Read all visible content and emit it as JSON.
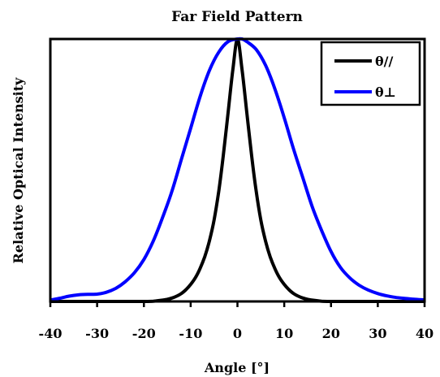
{
  "chart_data": {
    "type": "line",
    "title": "Far Field Pattern",
    "xlabel": "Angle [°]",
    "ylabel": "Relative Optical Intensity",
    "xlim": [
      -40,
      40
    ],
    "ylim": [
      0,
      1
    ],
    "xticks": [
      -40,
      -30,
      -20,
      -10,
      0,
      10,
      20,
      30,
      40
    ],
    "xtick_labels": [
      "-40",
      "-30",
      "-20",
      "-10",
      "0",
      "10",
      "20",
      "30",
      "40"
    ],
    "show_yticks": false,
    "grid": false,
    "legend_position": "top-right",
    "series": [
      {
        "name": "θ//",
        "color": "#000000",
        "x": [
          -40,
          -30,
          -25,
          -20,
          -18,
          -16,
          -15,
          -14,
          -13,
          -12,
          -11,
          -10,
          -9,
          -8,
          -7,
          -6,
          -5,
          -4,
          -3,
          -2,
          -1,
          0,
          1,
          2,
          3,
          4,
          5,
          6,
          7,
          8,
          9,
          10,
          11,
          12,
          13,
          14,
          15,
          16,
          18,
          20,
          25,
          30,
          40
        ],
        "y": [
          0,
          0,
          0,
          0,
          0.001,
          0.005,
          0.008,
          0.013,
          0.02,
          0.03,
          0.045,
          0.065,
          0.09,
          0.125,
          0.17,
          0.23,
          0.31,
          0.42,
          0.56,
          0.72,
          0.88,
          1.0,
          0.88,
          0.72,
          0.56,
          0.42,
          0.31,
          0.23,
          0.17,
          0.125,
          0.09,
          0.065,
          0.045,
          0.03,
          0.02,
          0.013,
          0.008,
          0.005,
          0.001,
          0,
          0,
          0,
          0
        ]
      },
      {
        "name": "θ⊥",
        "color": "#0000ff",
        "x": [
          -40,
          -38,
          -36,
          -34,
          -32,
          -30,
          -28,
          -26,
          -24,
          -22,
          -20,
          -18,
          -16,
          -14,
          -12,
          -10,
          -8,
          -6,
          -4,
          -2,
          0,
          1,
          2,
          4,
          6,
          8,
          10,
          12,
          14,
          16,
          18,
          20,
          22,
          24,
          26,
          28,
          30,
          32,
          34,
          36,
          38,
          40
        ],
        "y": [
          0.005,
          0.012,
          0.02,
          0.025,
          0.027,
          0.028,
          0.035,
          0.05,
          0.075,
          0.11,
          0.16,
          0.23,
          0.32,
          0.42,
          0.54,
          0.66,
          0.78,
          0.88,
          0.95,
          0.99,
          1.0,
          1.0,
          0.99,
          0.96,
          0.9,
          0.81,
          0.7,
          0.58,
          0.47,
          0.36,
          0.27,
          0.19,
          0.13,
          0.09,
          0.062,
          0.043,
          0.03,
          0.021,
          0.015,
          0.011,
          0.008,
          0.006
        ]
      }
    ]
  }
}
